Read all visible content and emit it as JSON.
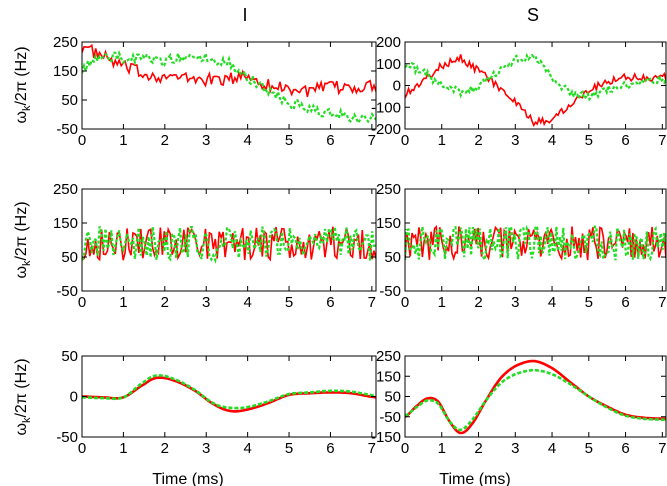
{
  "figure": {
    "column_titles": [
      "I",
      "S"
    ],
    "ylabel_main": "ω",
    "ylabel_sub": "k",
    "ylabel_tail": "/2π (Hz)",
    "xlabel": "Time (ms)"
  },
  "series_colors": {
    "solid": "#ff0000",
    "dashed": "#22dd22"
  },
  "chart_data": [
    {
      "type": "line",
      "name": "row1-I",
      "xlim": [
        0,
        7.1
      ],
      "ylim": [
        -50,
        250
      ],
      "xticks": [
        "0",
        "1",
        "2",
        "3",
        "4",
        "5",
        "6",
        "7"
      ],
      "yticks": [
        "-50",
        "50",
        "150",
        "250"
      ],
      "ytick_values": [
        -50,
        50,
        150,
        250
      ],
      "series": [
        {
          "style": "solid",
          "x": [
            0,
            0.5,
            1,
            1.5,
            2,
            2.5,
            3,
            3.5,
            4,
            4.5,
            5,
            5.5,
            6,
            6.5,
            7
          ],
          "y": [
            235,
            200,
            165,
            140,
            130,
            125,
            120,
            120,
            135,
            100,
            90,
            80,
            95,
            90,
            100
          ],
          "noise": 22
        },
        {
          "style": "dashed",
          "x": [
            0,
            0.5,
            1,
            1.5,
            2,
            2.5,
            3,
            3.5,
            4,
            4.5,
            5,
            5.5,
            6,
            6.5,
            7
          ],
          "y": [
            160,
            200,
            195,
            190,
            185,
            200,
            195,
            185,
            130,
            80,
            40,
            20,
            0,
            -10,
            -15
          ],
          "noise": 18
        }
      ]
    },
    {
      "type": "line",
      "name": "row1-S",
      "xlim": [
        0,
        7.1
      ],
      "ylim": [
        -200,
        200
      ],
      "xticks": [
        "0",
        "1",
        "2",
        "3",
        "4",
        "5",
        "6",
        "7"
      ],
      "yticks": [
        "-200",
        "-100",
        "0",
        "100",
        "200"
      ],
      "ytick_values": [
        -200,
        -100,
        0,
        100,
        200
      ],
      "series": [
        {
          "style": "solid",
          "x": [
            0,
            0.5,
            1,
            1.5,
            2,
            2.5,
            3,
            3.5,
            4,
            4.5,
            5,
            5.5,
            6,
            6.5,
            7
          ],
          "y": [
            -40,
            20,
            90,
            130,
            70,
            0,
            -80,
            -170,
            -160,
            -80,
            -20,
            20,
            40,
            35,
            40
          ],
          "noise": 18
        },
        {
          "style": "dashed",
          "x": [
            0,
            0.5,
            1,
            1.5,
            2,
            2.5,
            3,
            3.5,
            4,
            4.5,
            5,
            5.5,
            6,
            6.5,
            7
          ],
          "y": [
            100,
            60,
            0,
            -30,
            -10,
            60,
            120,
            130,
            40,
            -40,
            -50,
            -20,
            0,
            20,
            30
          ],
          "noise": 18
        }
      ]
    },
    {
      "type": "line",
      "name": "row2-I",
      "xlim": [
        0,
        7.1
      ],
      "ylim": [
        -50,
        250
      ],
      "xticks": [
        "0",
        "1",
        "2",
        "3",
        "4",
        "5",
        "6",
        "7"
      ],
      "yticks": [
        "-50",
        "50",
        "150",
        "250"
      ],
      "ytick_values": [
        -50,
        50,
        150,
        250
      ],
      "series": [
        {
          "style": "solid",
          "x": [
            0,
            7
          ],
          "y": [
            90,
            90
          ],
          "noise": 50
        },
        {
          "style": "dashed",
          "x": [
            0,
            7
          ],
          "y": [
            90,
            90
          ],
          "noise": 50
        }
      ]
    },
    {
      "type": "line",
      "name": "row2-S",
      "xlim": [
        0,
        7.1
      ],
      "ylim": [
        -50,
        250
      ],
      "xticks": [
        "0",
        "1",
        "2",
        "3",
        "4",
        "5",
        "6",
        "7"
      ],
      "yticks": [
        "-50",
        "50",
        "150",
        "250"
      ],
      "ytick_values": [
        -50,
        50,
        150,
        250
      ],
      "series": [
        {
          "style": "solid",
          "x": [
            0,
            7
          ],
          "y": [
            90,
            90
          ],
          "noise": 50
        },
        {
          "style": "dashed",
          "x": [
            0,
            7
          ],
          "y": [
            90,
            90
          ],
          "noise": 50
        }
      ]
    },
    {
      "type": "line",
      "name": "row3-I",
      "xlim": [
        0,
        7.1
      ],
      "ylim": [
        -50,
        50
      ],
      "xticks": [
        "0",
        "1",
        "2",
        "3",
        "4",
        "5",
        "6",
        "7"
      ],
      "yticks": [
        "-50",
        "0",
        "50"
      ],
      "ytick_values": [
        -50,
        0,
        50
      ],
      "series": [
        {
          "style": "solid",
          "x": [
            0,
            0.5,
            1,
            1.5,
            1.8,
            2.2,
            2.7,
            3.2,
            3.6,
            4,
            4.5,
            5,
            5.5,
            6,
            6.5,
            7.1
          ],
          "y": [
            0,
            -1,
            -1,
            15,
            23,
            20,
            8,
            -10,
            -18,
            -16,
            -8,
            2,
            4,
            5,
            4,
            -1
          ],
          "noise": 0
        },
        {
          "style": "dashed",
          "x": [
            0,
            0.5,
            1,
            1.5,
            1.8,
            2.2,
            2.7,
            3.2,
            3.6,
            4,
            4.5,
            5,
            5.5,
            6,
            6.5,
            7.1
          ],
          "y": [
            -1,
            -2,
            -1,
            18,
            26,
            22,
            9,
            -9,
            -14,
            -13,
            -6,
            3,
            5,
            7,
            6,
            1
          ],
          "noise": 0
        }
      ]
    },
    {
      "type": "line",
      "name": "row3-S",
      "xlim": [
        0,
        7.1
      ],
      "ylim": [
        -150,
        250
      ],
      "xticks": [
        "0",
        "1",
        "2",
        "3",
        "4",
        "5",
        "6",
        "7"
      ],
      "yticks": [
        "-150",
        "-50",
        "50",
        "150",
        "250"
      ],
      "ytick_values": [
        -150,
        -50,
        50,
        150,
        250
      ],
      "series": [
        {
          "style": "solid",
          "x": [
            0,
            0.3,
            0.6,
            0.9,
            1.2,
            1.5,
            1.8,
            2.2,
            2.6,
            3,
            3.5,
            4,
            4.5,
            5,
            5.5,
            6,
            6.5,
            7.1
          ],
          "y": [
            -50,
            0,
            40,
            25,
            -70,
            -130,
            -90,
            30,
            140,
            200,
            225,
            190,
            120,
            50,
            0,
            -40,
            -55,
            -60
          ],
          "noise": 0
        },
        {
          "style": "dashed",
          "x": [
            0,
            0.3,
            0.6,
            0.9,
            1.2,
            1.5,
            1.8,
            2.2,
            2.6,
            3,
            3.5,
            4,
            4.5,
            5,
            5.5,
            6,
            6.5,
            7.1
          ],
          "y": [
            -45,
            -5,
            30,
            15,
            -70,
            -115,
            -70,
            30,
            115,
            160,
            180,
            160,
            110,
            50,
            -5,
            -45,
            -60,
            -65
          ],
          "noise": 0
        }
      ]
    }
  ]
}
